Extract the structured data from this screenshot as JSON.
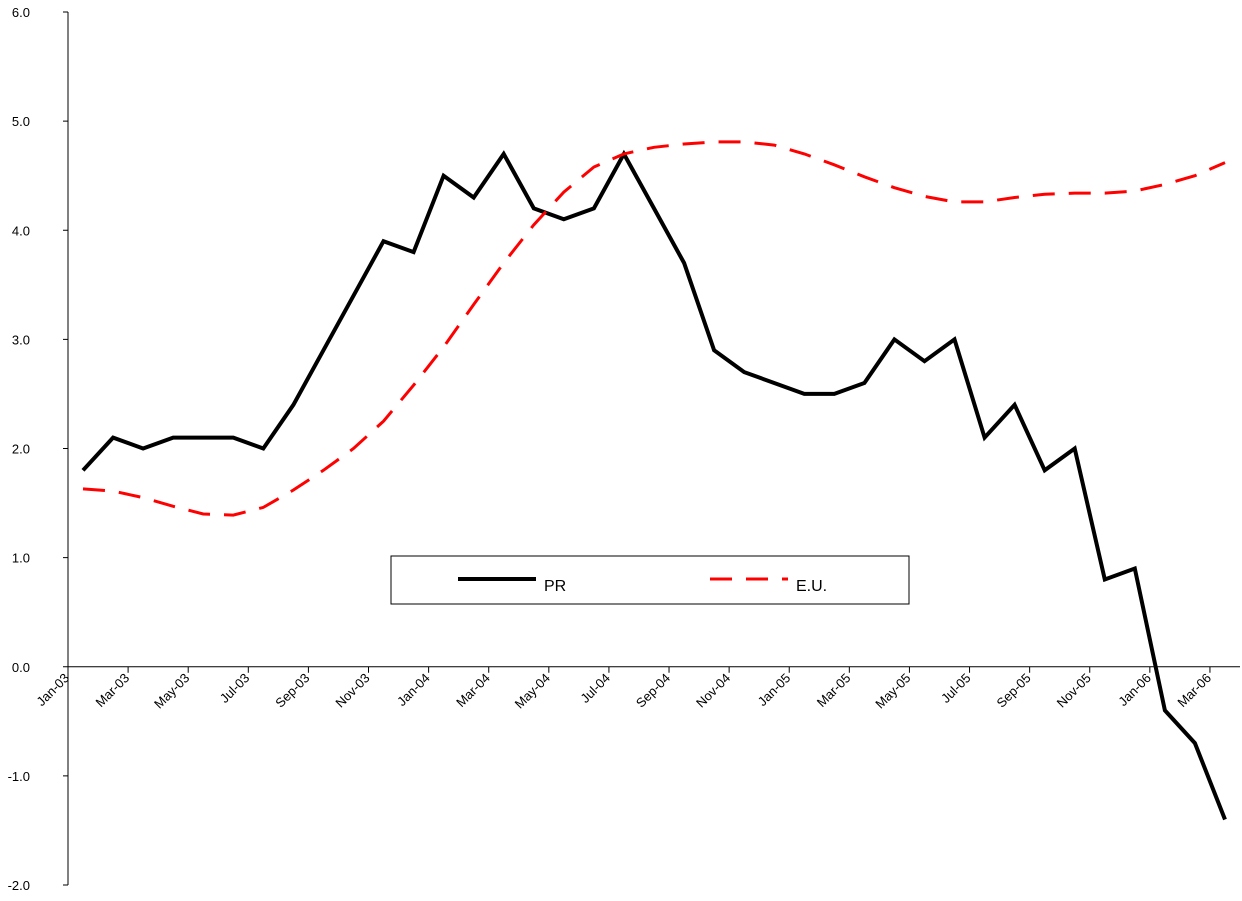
{
  "chart_data": {
    "type": "line",
    "categories": [
      "Jan-03",
      null,
      "Mar-03",
      null,
      "May-03",
      null,
      "Jul-03",
      null,
      "Sep-03",
      null,
      "Nov-03",
      null,
      "Jan-04",
      null,
      "Mar-04",
      null,
      "May-04",
      null,
      "Jul-04",
      null,
      "Sep-04",
      null,
      "Nov-04",
      null,
      "Jan-05",
      null,
      "Mar-05",
      null,
      "May-05",
      null,
      "Jul-05",
      null,
      "Sep-05",
      null,
      "Nov-05",
      null,
      "Jan-06",
      null,
      "Mar-06"
    ],
    "series": [
      {
        "name": "PR",
        "color": "#000000",
        "values": [
          1.8,
          2.1,
          2.0,
          2.1,
          2.1,
          2.1,
          2.0,
          2.4,
          2.9,
          3.4,
          3.9,
          3.8,
          4.5,
          4.3,
          4.7,
          4.2,
          4.1,
          4.2,
          4.7,
          4.2,
          3.7,
          2.9,
          2.7,
          2.6,
          2.5,
          2.5,
          2.6,
          3.0,
          2.8,
          3.0,
          2.1,
          2.4,
          1.8,
          2.0,
          0.8,
          0.9,
          -0.4,
          -0.7,
          -1.4
        ]
      },
      {
        "name": "E.U.",
        "color": "#ff0000",
        "values": [
          1.63,
          1.61,
          1.55,
          1.47,
          1.4,
          1.39,
          1.46,
          1.62,
          1.8,
          2.0,
          2.25,
          2.58,
          2.93,
          3.32,
          3.7,
          4.05,
          4.35,
          4.58,
          4.7,
          4.76,
          4.79,
          4.81,
          4.81,
          4.78,
          4.7,
          4.6,
          4.49,
          4.39,
          4.31,
          4.26,
          4.26,
          4.3,
          4.33,
          4.34,
          4.34,
          4.36,
          4.42,
          4.5,
          4.62
        ]
      }
    ],
    "ylim": [
      -2,
      6
    ],
    "yticks": [
      {
        "value": -2,
        "label": "-2.0"
      },
      {
        "value": -1,
        "label": "-1.0"
      },
      {
        "value": 0,
        "label": "0.0"
      },
      {
        "value": 1,
        "label": "1.0"
      },
      {
        "value": 2,
        "label": "2.0"
      },
      {
        "value": 3,
        "label": "3.0"
      },
      {
        "value": 4,
        "label": "4.0"
      },
      {
        "value": 5,
        "label": "5.0"
      },
      {
        "value": 6,
        "label": "6.0"
      }
    ],
    "grid": false
  }
}
